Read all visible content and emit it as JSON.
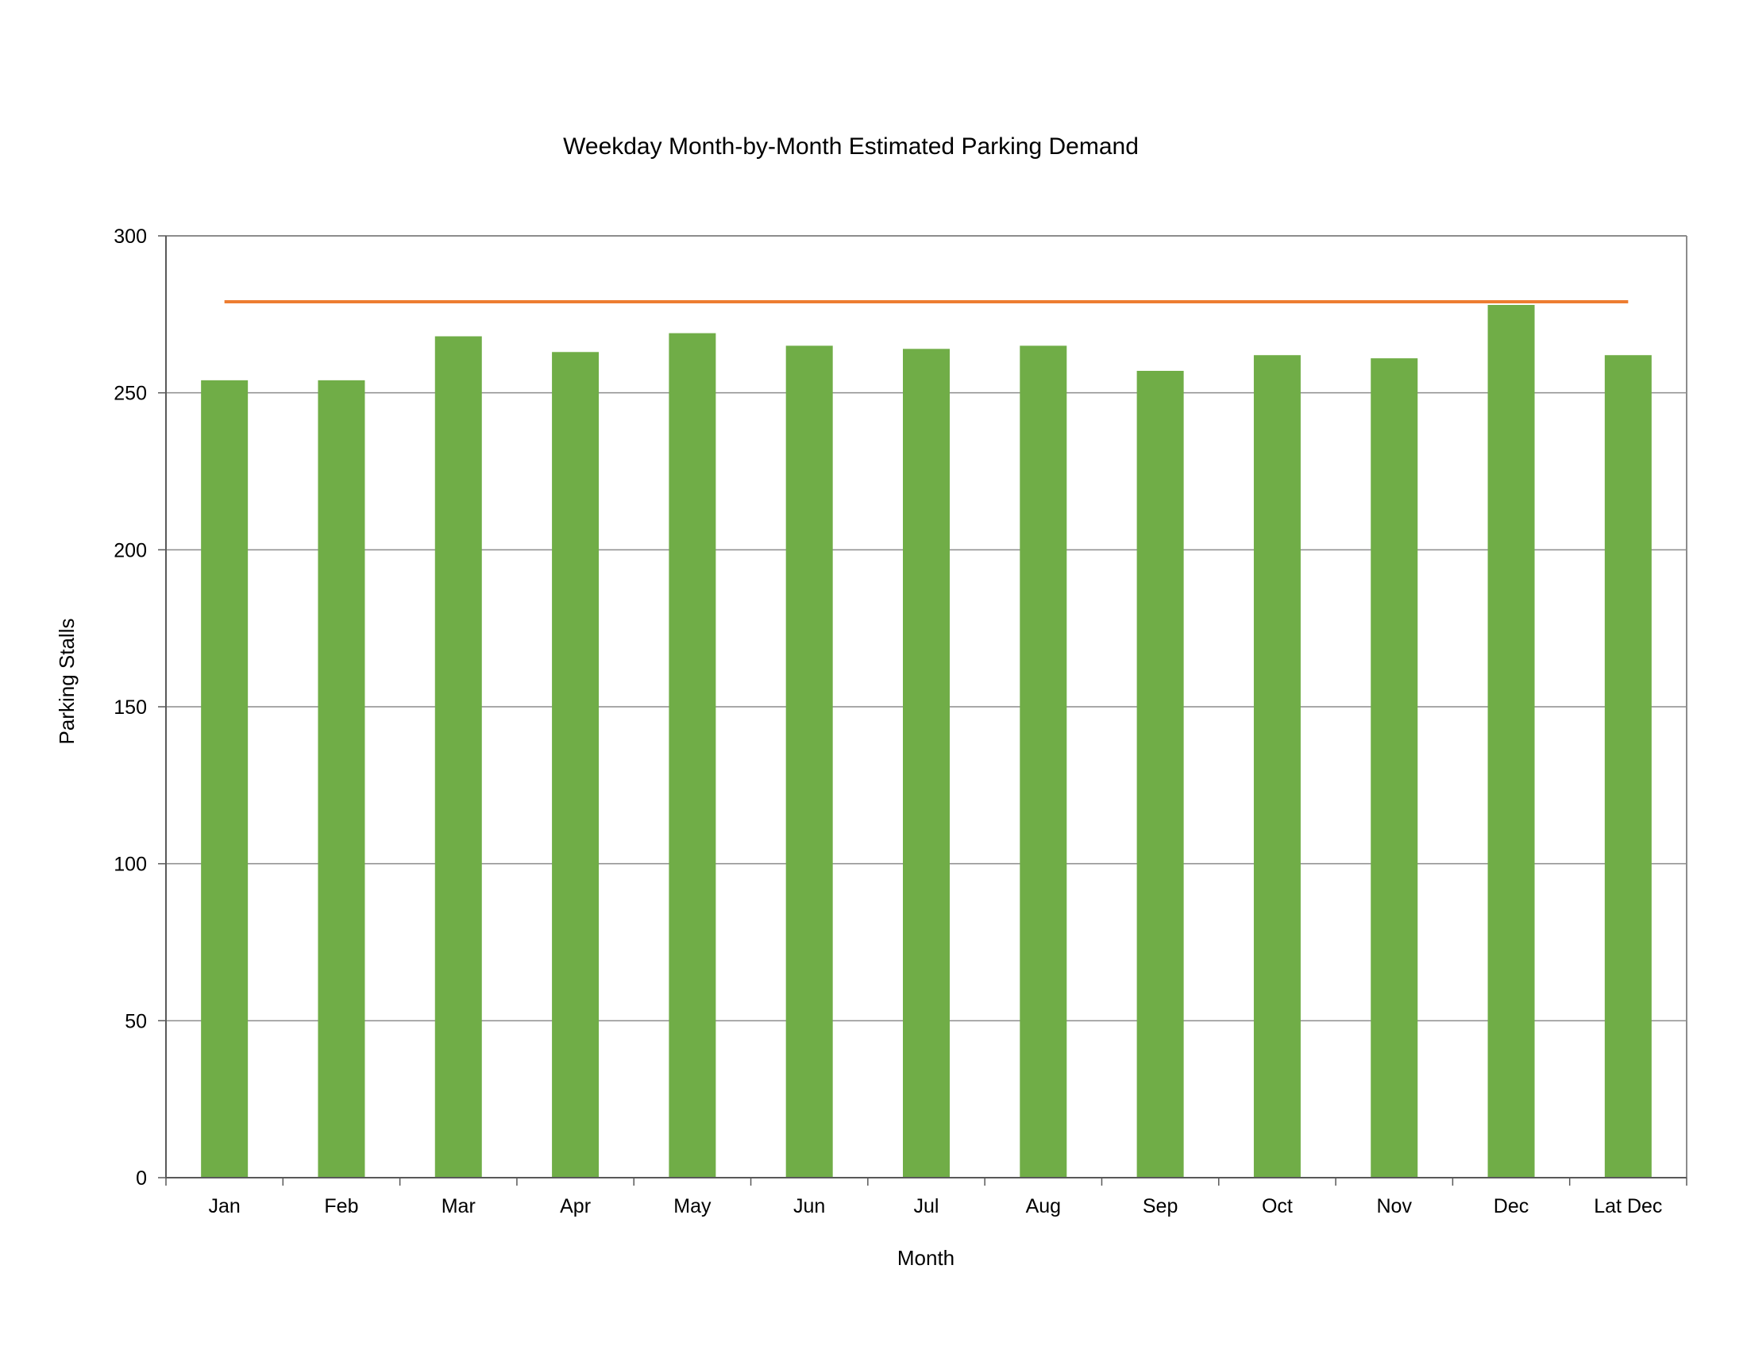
{
  "chart_data": {
    "type": "bar",
    "title": "Weekday Month-by-Month Estimated Parking Demand",
    "xlabel": "Month",
    "ylabel": "Parking Stalls",
    "categories": [
      "Jan",
      "Feb",
      "Mar",
      "Apr",
      "May",
      "Jun",
      "Jul",
      "Aug",
      "Sep",
      "Oct",
      "Nov",
      "Dec",
      "Lat Dec"
    ],
    "values": [
      254,
      254,
      268,
      263,
      269,
      265,
      264,
      265,
      257,
      262,
      261,
      278,
      262
    ],
    "reference_line": 279,
    "ylim": [
      0,
      300
    ],
    "yticks": [
      0,
      50,
      100,
      150,
      200,
      250,
      300
    ],
    "grid": true,
    "legend": "none",
    "colors": {
      "bar": "#70ad47",
      "reference_line": "#ed7d31",
      "grid": "#8c8c8c",
      "axis": "#595959"
    }
  }
}
